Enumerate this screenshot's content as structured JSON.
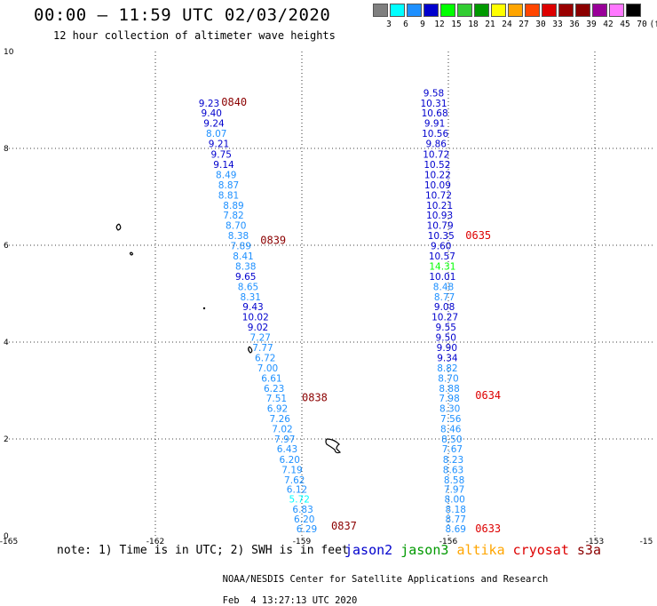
{
  "header": {
    "title": "00:00 – 11:59 UTC 02/03/2020",
    "subtitle": "12 hour collection of altimeter wave heights"
  },
  "colorbar": {
    "swatches": [
      "#808080",
      "#00ffff",
      "#1e90ff",
      "#0000cd",
      "#00ff00",
      "#32cd32",
      "#009900",
      "#ffff00",
      "#ffa500",
      "#ff4500",
      "#dd0000",
      "#990000",
      "#8b0000",
      "#990099",
      "#ff77ff",
      "#000000"
    ],
    "labels": [
      "3",
      "6",
      "9",
      "12",
      "15",
      "18",
      "21",
      "24",
      "27",
      "30",
      "33",
      "36",
      "39",
      "42",
      "45",
      "70"
    ],
    "unit": "(ft)"
  },
  "map": {
    "x_ticks": [
      "-165",
      "-162",
      "-159",
      "-156",
      "-153",
      "-15"
    ],
    "y_ticks": [
      "0",
      "2",
      "4",
      "6",
      "8",
      "10"
    ],
    "tracks": [
      {
        "satellite": "jason2",
        "points": [
          {
            "lat": 0.15,
            "lon": -158.9,
            "swh": "6.29"
          },
          {
            "lat": 0.35,
            "lon": -158.95,
            "swh": "6.20"
          },
          {
            "lat": 0.55,
            "lon": -158.98,
            "swh": "6.83"
          },
          {
            "lat": 0.76,
            "lon": -159.05,
            "swh": "5.72"
          },
          {
            "lat": 0.96,
            "lon": -159.1,
            "swh": "6.12"
          },
          {
            "lat": 1.16,
            "lon": -159.15,
            "swh": "7.62"
          },
          {
            "lat": 1.37,
            "lon": -159.2,
            "swh": "7.19"
          },
          {
            "lat": 1.58,
            "lon": -159.25,
            "swh": "6.20"
          },
          {
            "lat": 1.8,
            "lon": -159.3,
            "swh": "6.43"
          },
          {
            "lat": 2.0,
            "lon": -159.35,
            "swh": "7.97"
          },
          {
            "lat": 2.21,
            "lon": -159.4,
            "swh": "7.02"
          },
          {
            "lat": 2.42,
            "lon": -159.45,
            "swh": "7.26"
          },
          {
            "lat": 2.63,
            "lon": -159.5,
            "swh": "6.92"
          },
          {
            "lat": 2.84,
            "lon": -159.52,
            "swh": "7.51"
          },
          {
            "lat": 3.05,
            "lon": -159.57,
            "swh": "6.23"
          },
          {
            "lat": 3.26,
            "lon": -159.62,
            "swh": "6.61"
          },
          {
            "lat": 3.47,
            "lon": -159.7,
            "swh": "7.00"
          },
          {
            "lat": 3.68,
            "lon": -159.75,
            "swh": "6.72"
          },
          {
            "lat": 3.89,
            "lon": -159.8,
            "swh": "7.77"
          },
          {
            "lat": 4.1,
            "lon": -159.85,
            "swh": "7.27"
          },
          {
            "lat": 4.31,
            "lon": -159.9,
            "swh": "9.02"
          },
          {
            "lat": 4.52,
            "lon": -159.95,
            "swh": "10.02"
          },
          {
            "lat": 4.73,
            "lon": -160.0,
            "swh": "9.43"
          },
          {
            "lat": 4.94,
            "lon": -160.05,
            "swh": "8.31"
          },
          {
            "lat": 5.15,
            "lon": -160.1,
            "swh": "8.65"
          },
          {
            "lat": 5.36,
            "lon": -160.15,
            "swh": "9.65"
          },
          {
            "lat": 5.57,
            "lon": -160.15,
            "swh": "8.38"
          },
          {
            "lat": 5.78,
            "lon": -160.2,
            "swh": "8.41"
          },
          {
            "lat": 5.99,
            "lon": -160.25,
            "swh": "7.89"
          },
          {
            "lat": 6.2,
            "lon": -160.3,
            "swh": "8.38"
          },
          {
            "lat": 6.41,
            "lon": -160.35,
            "swh": "8.70"
          },
          {
            "lat": 6.62,
            "lon": -160.4,
            "swh": "7.82"
          },
          {
            "lat": 6.83,
            "lon": -160.4,
            "swh": "8.89"
          },
          {
            "lat": 7.04,
            "lon": -160.5,
            "swh": "8.81"
          },
          {
            "lat": 7.25,
            "lon": -160.5,
            "swh": "8.87"
          },
          {
            "lat": 7.46,
            "lon": -160.55,
            "swh": "8.49"
          },
          {
            "lat": 7.67,
            "lon": -160.6,
            "swh": "9.14"
          },
          {
            "lat": 7.88,
            "lon": -160.65,
            "swh": "9.75"
          },
          {
            "lat": 8.1,
            "lon": -160.7,
            "swh": "9.21"
          },
          {
            "lat": 8.31,
            "lon": -160.75,
            "swh": "8.07"
          },
          {
            "lat": 8.52,
            "lon": -160.8,
            "swh": "9.24"
          },
          {
            "lat": 8.73,
            "lon": -160.85,
            "swh": "9.40"
          },
          {
            "lat": 8.94,
            "lon": -160.9,
            "swh": "9.23"
          }
        ],
        "time_labels": [
          {
            "lat": 0.2,
            "lon": -158.4,
            "text": "0837"
          },
          {
            "lat": 2.85,
            "lon": -159.0,
            "text": "0838"
          },
          {
            "lat": 6.1,
            "lon": -159.85,
            "text": "0839"
          },
          {
            "lat": 8.95,
            "lon": -160.65,
            "text": "0840"
          }
        ],
        "time_color": "#8b0000"
      },
      {
        "satellite": "jason2",
        "points": [
          {
            "lat": 0.15,
            "lon": -155.85,
            "swh": "8.69"
          },
          {
            "lat": 0.35,
            "lon": -155.85,
            "swh": "8.77"
          },
          {
            "lat": 0.55,
            "lon": -155.85,
            "swh": "8.18"
          },
          {
            "lat": 0.76,
            "lon": -155.87,
            "swh": "8.00"
          },
          {
            "lat": 0.96,
            "lon": -155.88,
            "swh": "7.97"
          },
          {
            "lat": 1.16,
            "lon": -155.88,
            "swh": "8.58"
          },
          {
            "lat": 1.37,
            "lon": -155.9,
            "swh": "8.63"
          },
          {
            "lat": 1.58,
            "lon": -155.9,
            "swh": "8.23"
          },
          {
            "lat": 1.8,
            "lon": -155.92,
            "swh": "7.67"
          },
          {
            "lat": 2.0,
            "lon": -155.93,
            "swh": "8.50"
          },
          {
            "lat": 2.21,
            "lon": -155.95,
            "swh": "8.46"
          },
          {
            "lat": 2.42,
            "lon": -155.95,
            "swh": "7.56"
          },
          {
            "lat": 2.63,
            "lon": -155.97,
            "swh": "8.30"
          },
          {
            "lat": 2.84,
            "lon": -155.98,
            "swh": "7.98"
          },
          {
            "lat": 3.05,
            "lon": -155.98,
            "swh": "8.88"
          },
          {
            "lat": 3.26,
            "lon": -156.0,
            "swh": "8.70"
          },
          {
            "lat": 3.47,
            "lon": -156.02,
            "swh": "8.82"
          },
          {
            "lat": 3.68,
            "lon": -156.02,
            "swh": "9.34"
          },
          {
            "lat": 3.89,
            "lon": -156.03,
            "swh": "9.90"
          },
          {
            "lat": 4.1,
            "lon": -156.05,
            "swh": "9.50"
          },
          {
            "lat": 4.31,
            "lon": -156.05,
            "swh": "9.55"
          },
          {
            "lat": 4.52,
            "lon": -156.07,
            "swh": "10.27"
          },
          {
            "lat": 4.73,
            "lon": -156.08,
            "swh": "9.08"
          },
          {
            "lat": 4.94,
            "lon": -156.08,
            "swh": "8.77"
          },
          {
            "lat": 5.15,
            "lon": -156.1,
            "swh": "8.48"
          },
          {
            "lat": 5.36,
            "lon": -156.12,
            "swh": "10.01"
          },
          {
            "lat": 5.57,
            "lon": -156.12,
            "swh": "14.31"
          },
          {
            "lat": 5.78,
            "lon": -156.13,
            "swh": "10.57"
          },
          {
            "lat": 5.99,
            "lon": -156.15,
            "swh": "9.60"
          },
          {
            "lat": 6.2,
            "lon": -156.15,
            "swh": "10.35"
          },
          {
            "lat": 6.41,
            "lon": -156.17,
            "swh": "10.79"
          },
          {
            "lat": 6.62,
            "lon": -156.18,
            "swh": "10.93"
          },
          {
            "lat": 6.83,
            "lon": -156.18,
            "swh": "10.21"
          },
          {
            "lat": 7.04,
            "lon": -156.2,
            "swh": "10.72"
          },
          {
            "lat": 7.25,
            "lon": -156.22,
            "swh": "10.09"
          },
          {
            "lat": 7.46,
            "lon": -156.22,
            "swh": "10.22"
          },
          {
            "lat": 7.67,
            "lon": -156.23,
            "swh": "10.52"
          },
          {
            "lat": 7.88,
            "lon": -156.25,
            "swh": "10.72"
          },
          {
            "lat": 8.1,
            "lon": -156.25,
            "swh": "9.86"
          },
          {
            "lat": 8.31,
            "lon": -156.27,
            "swh": "10.56"
          },
          {
            "lat": 8.52,
            "lon": -156.28,
            "swh": "9.91"
          },
          {
            "lat": 8.73,
            "lon": -156.28,
            "swh": "10.68"
          },
          {
            "lat": 8.94,
            "lon": -156.3,
            "swh": "10.31"
          },
          {
            "lat": 9.15,
            "lon": -156.3,
            "swh": "9.58"
          }
        ],
        "time_labels": [
          {
            "lat": 0.15,
            "lon": -155.45,
            "text": "0633"
          },
          {
            "lat": 2.9,
            "lon": -155.45,
            "text": "0634"
          },
          {
            "lat": 6.2,
            "lon": -155.65,
            "text": "0635"
          }
        ],
        "time_color": "#dd0000"
      }
    ]
  },
  "footer": {
    "note": "note: 1) Time is in UTC; 2) SWH is in feet",
    "satellites": [
      {
        "name": "jason2",
        "color": "#0000cd"
      },
      {
        "name": "jason3",
        "color": "#009900"
      },
      {
        "name": "altika",
        "color": "#ffa500"
      },
      {
        "name": "cryosat",
        "color": "#dd0000"
      },
      {
        "name": "s3a",
        "color": "#8b0000"
      }
    ],
    "credit": "NOAA/NESDIS Center for Satellite Applications and Research",
    "timestamp": "Feb  4 13:27:13 UTC 2020"
  }
}
